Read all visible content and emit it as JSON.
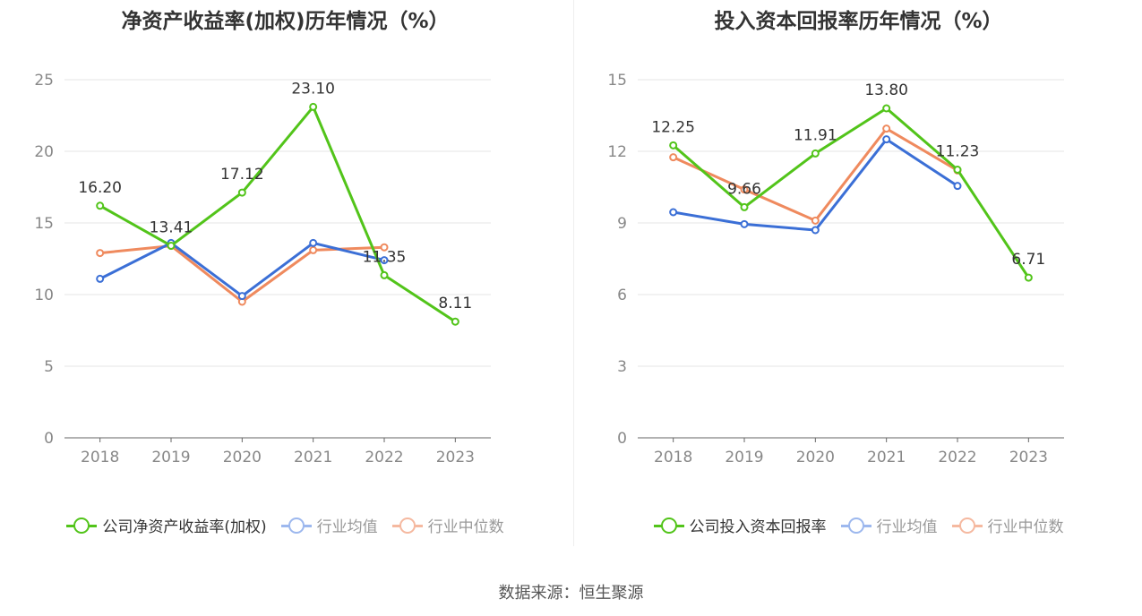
{
  "chart_data": [
    {
      "type": "line",
      "title": "净资产收益率(加权)历年情况（%）",
      "categories": [
        "2018",
        "2019",
        "2020",
        "2021",
        "2022",
        "2023"
      ],
      "ylim": [
        0,
        25
      ],
      "yticks": [
        0,
        5,
        10,
        15,
        20,
        25
      ],
      "grid": true,
      "legend_position": "bottom",
      "series": [
        {
          "name": "公司净资产收益率(加权)",
          "color": "#52c41a",
          "values": [
            16.2,
            13.41,
            17.12,
            23.1,
            11.35,
            8.11
          ],
          "labels": [
            "16.20",
            "13.41",
            "17.12",
            "23.10",
            "11.35",
            "8.11"
          ]
        },
        {
          "name": "行业均值",
          "color": "#3b6fd6",
          "values": [
            11.1,
            13.6,
            9.9,
            13.6,
            12.4,
            null
          ]
        },
        {
          "name": "行业中位数",
          "color": "#ef8a5e",
          "values": [
            12.9,
            13.4,
            9.5,
            13.1,
            13.3,
            null
          ]
        }
      ]
    },
    {
      "type": "line",
      "title": "投入资本回报率历年情况（%）",
      "categories": [
        "2018",
        "2019",
        "2020",
        "2021",
        "2022",
        "2023"
      ],
      "ylim": [
        0,
        15
      ],
      "yticks": [
        0,
        3,
        6,
        9,
        12,
        15
      ],
      "grid": true,
      "legend_position": "bottom",
      "series": [
        {
          "name": "公司投入资本回报率",
          "color": "#52c41a",
          "values": [
            12.25,
            9.66,
            11.91,
            13.8,
            11.23,
            6.71
          ],
          "labels": [
            "12.25",
            "9.66",
            "11.91",
            "13.80",
            "11.23",
            "6.71"
          ]
        },
        {
          "name": "行业均值",
          "color": "#3b6fd6",
          "values": [
            9.45,
            8.95,
            8.7,
            12.5,
            10.55,
            null
          ]
        },
        {
          "name": "行业中位数",
          "color": "#ef8a5e",
          "values": [
            11.75,
            10.4,
            9.1,
            12.95,
            11.2,
            null
          ]
        }
      ]
    }
  ],
  "legend_text_color_primary": "#333333",
  "legend_text_color_secondary": "#999999",
  "legend_dot_colors": [
    "#52c41a",
    "#9db8ee",
    "#f5b9a0"
  ],
  "source": "数据来源：恒生聚源"
}
